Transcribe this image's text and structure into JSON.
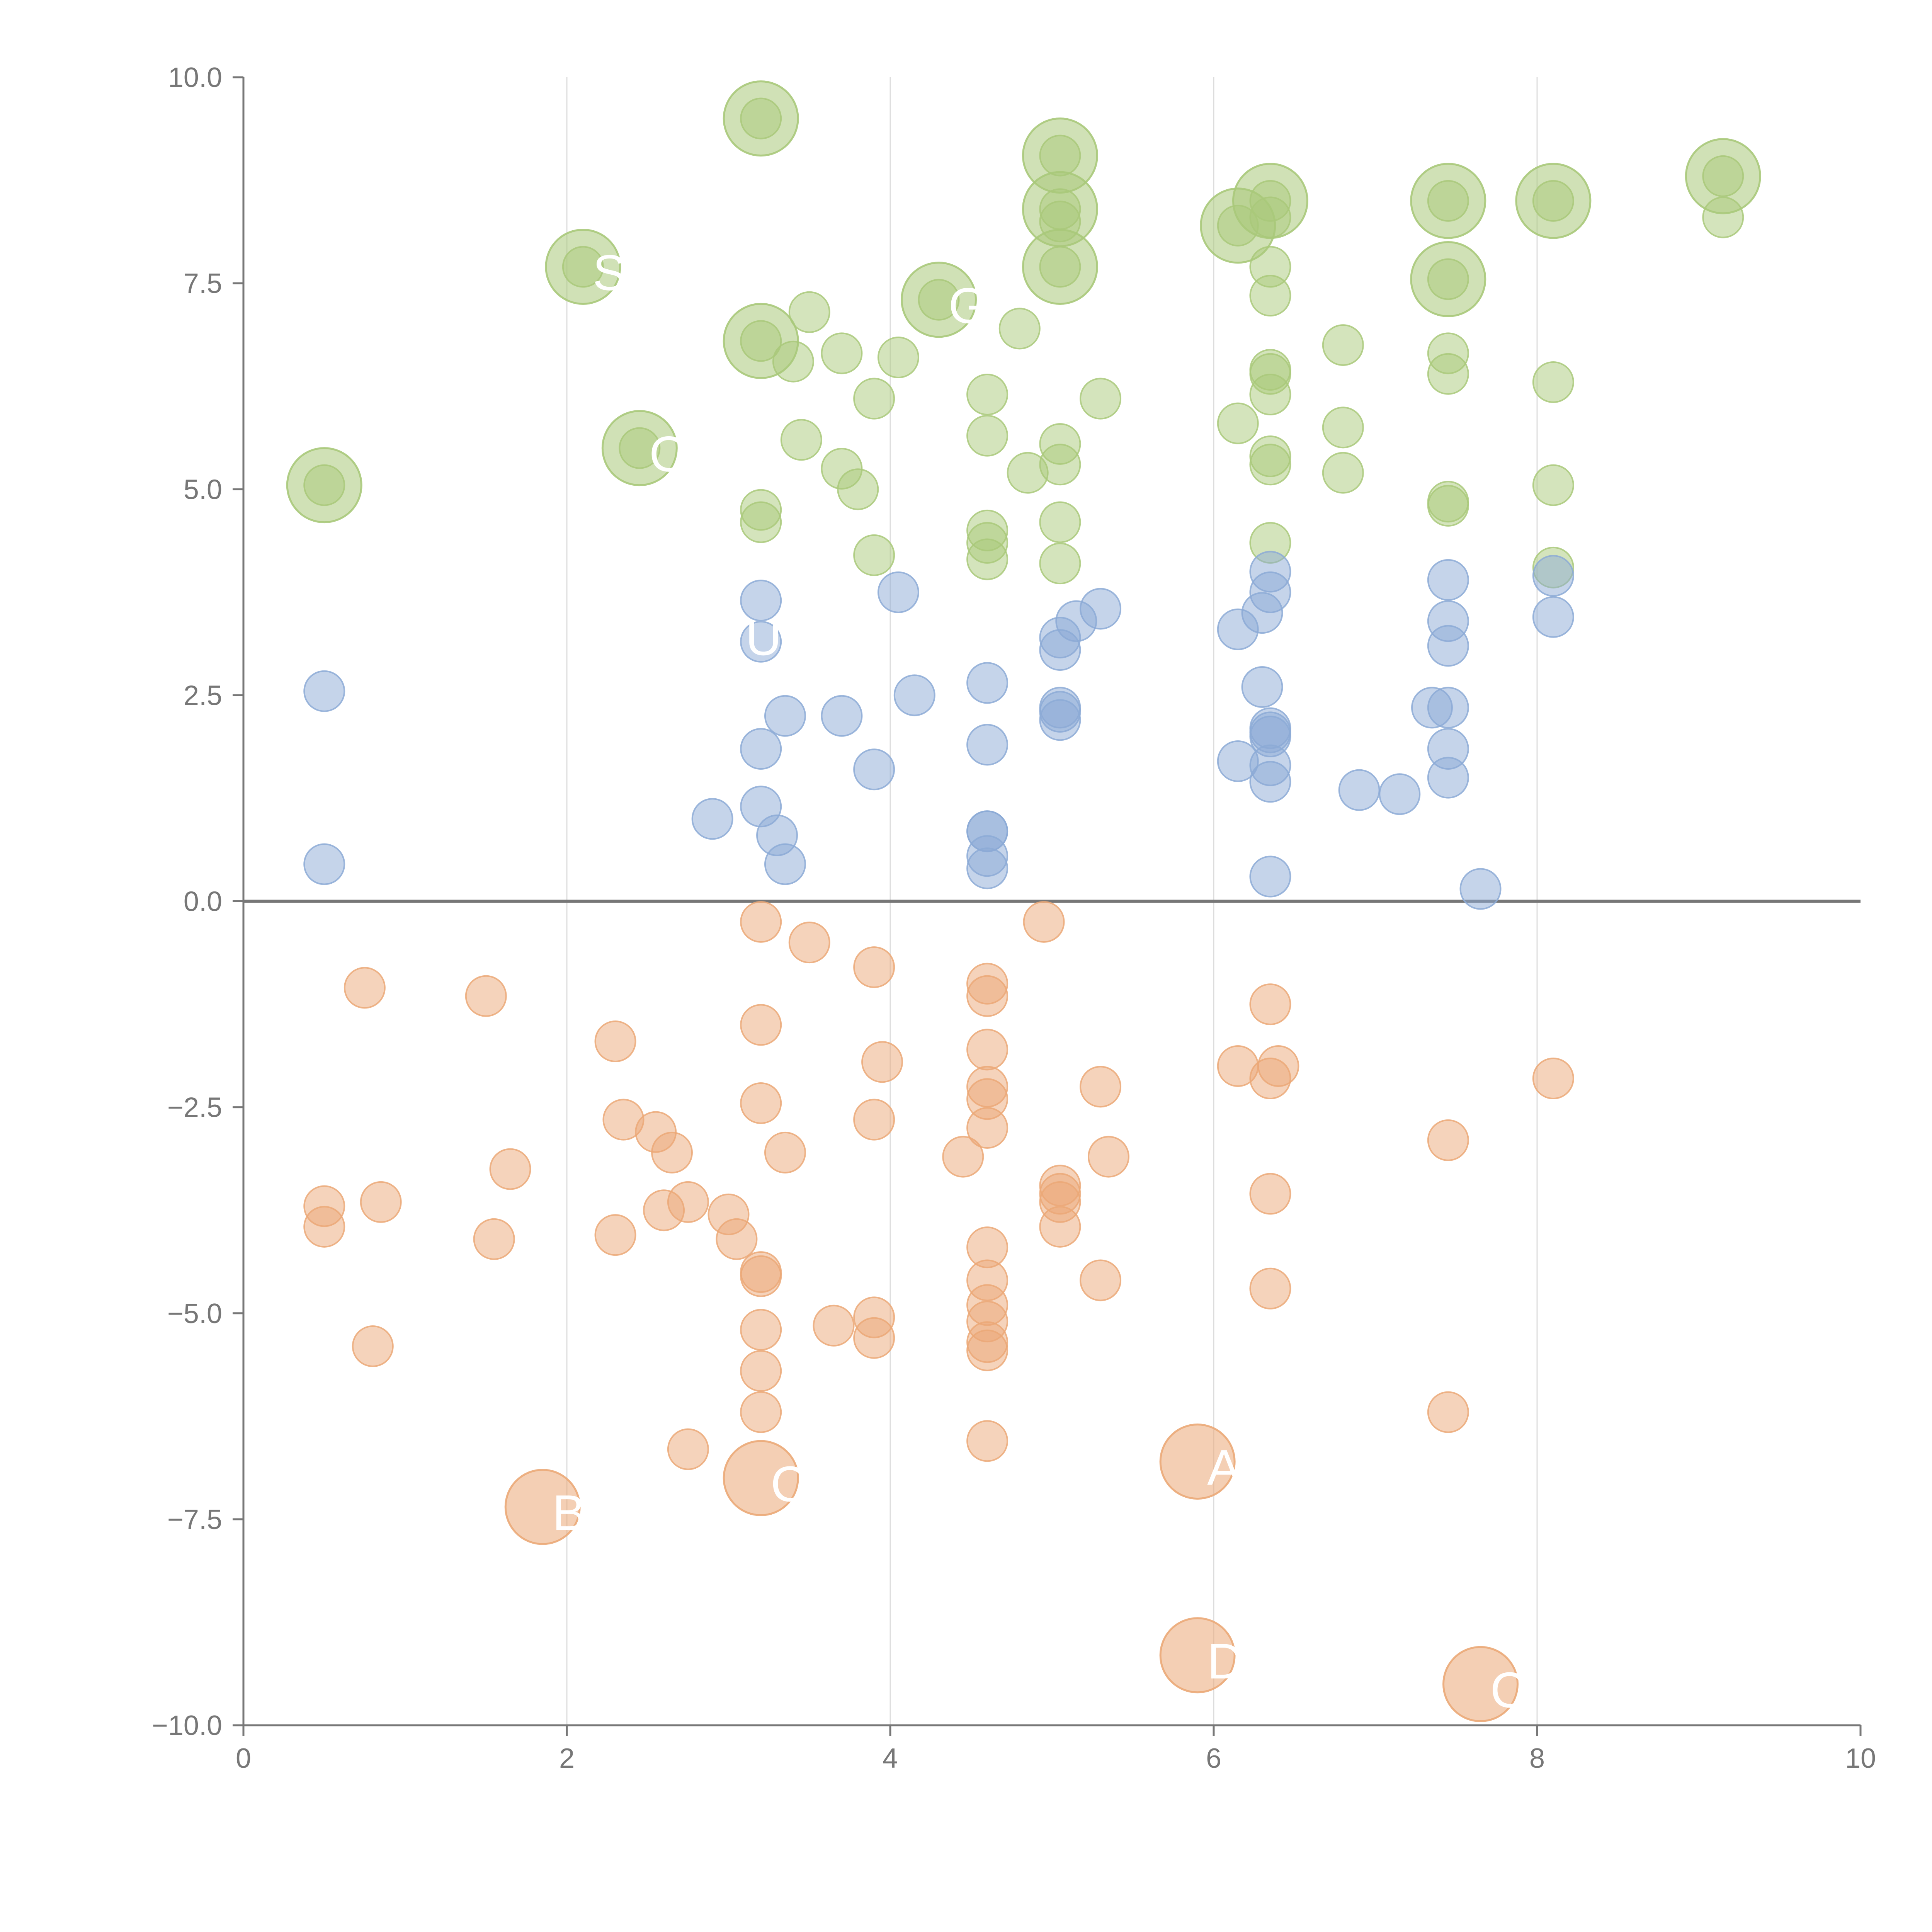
{
  "chart_data": {
    "type": "scatter",
    "title": "",
    "xlabel": "",
    "ylabel": "",
    "xlim": [
      0,
      10
    ],
    "ylim": [
      -10,
      10
    ],
    "x_ticks": [
      0,
      2,
      4,
      6,
      8,
      10
    ],
    "x_tick_labels": [
      "0",
      "2",
      "4",
      "6",
      "8",
      "10"
    ],
    "y_ticks": [
      10,
      7.5,
      5,
      2.5,
      0,
      -2.5,
      -5,
      -7.5,
      -10
    ],
    "y_tick_labels": [
      "10.0",
      "7.5",
      "5.0",
      "2.5",
      "0.0",
      "−2.5",
      "−5.0",
      "−7.5",
      "−10.0"
    ],
    "vertical_gridlines_at": [
      2,
      4,
      6,
      8
    ],
    "zero_line": 0,
    "colors": {
      "upper": "#a9c97a",
      "middle": "#8caad6",
      "lower": "#eba877",
      "axis": "#777777",
      "grid": "#dddddd",
      "zero_line": "#777777",
      "label": "#ffffff"
    },
    "series": [
      {
        "name": "upper",
        "points": [
          [
            3.2,
            9.5
          ],
          [
            5.05,
            9.05
          ],
          [
            6.35,
            8.5
          ],
          [
            7.45,
            8.5
          ],
          [
            8.1,
            8.5
          ],
          [
            9.15,
            8.8
          ],
          [
            5.05,
            8.4
          ],
          [
            6.15,
            8.2
          ],
          [
            5.05,
            7.7
          ],
          [
            7.45,
            7.55
          ],
          [
            3.2,
            6.8
          ],
          [
            4.3,
            7.3
          ],
          [
            2.1,
            7.7
          ],
          [
            2.45,
            5.5
          ],
          [
            0.5,
            5.05
          ],
          [
            9.15,
            8.3
          ],
          [
            6.35,
            8.3
          ],
          [
            5.05,
            8.25
          ],
          [
            6.35,
            7.7
          ],
          [
            6.35,
            7.35
          ],
          [
            3.5,
            7.15
          ],
          [
            4.8,
            6.95
          ],
          [
            6.8,
            6.75
          ],
          [
            3.7,
            6.65
          ],
          [
            4.05,
            6.6
          ],
          [
            3.4,
            6.55
          ],
          [
            7.45,
            6.65
          ],
          [
            6.35,
            6.45
          ],
          [
            6.35,
            6.4
          ],
          [
            7.45,
            6.4
          ],
          [
            8.1,
            6.3
          ],
          [
            4.6,
            6.15
          ],
          [
            6.35,
            6.15
          ],
          [
            5.3,
            6.1
          ],
          [
            3.9,
            6.1
          ],
          [
            6.15,
            5.8
          ],
          [
            6.8,
            5.75
          ],
          [
            4.6,
            5.65
          ],
          [
            3.45,
            5.6
          ],
          [
            5.05,
            5.55
          ],
          [
            6.35,
            5.4
          ],
          [
            5.05,
            5.3
          ],
          [
            6.35,
            5.3
          ],
          [
            3.7,
            5.25
          ],
          [
            4.85,
            5.2
          ],
          [
            6.8,
            5.2
          ],
          [
            3.8,
            5.0
          ],
          [
            8.1,
            5.05
          ],
          [
            7.45,
            4.85
          ],
          [
            7.45,
            4.8
          ],
          [
            3.2,
            4.75
          ],
          [
            3.2,
            4.6
          ],
          [
            5.05,
            4.6
          ],
          [
            4.6,
            4.5
          ],
          [
            4.6,
            4.35
          ],
          [
            6.35,
            4.35
          ],
          [
            3.9,
            4.2
          ],
          [
            4.6,
            4.15
          ],
          [
            5.05,
            4.1
          ],
          [
            8.1,
            4.05
          ]
        ]
      },
      {
        "name": "middle",
        "points": [
          [
            3.2,
            3.65
          ],
          [
            4.05,
            3.75
          ],
          [
            6.35,
            4.0
          ],
          [
            7.45,
            3.9
          ],
          [
            8.1,
            3.95
          ],
          [
            6.35,
            3.75
          ],
          [
            5.3,
            3.55
          ],
          [
            6.3,
            3.5
          ],
          [
            8.1,
            3.45
          ],
          [
            5.15,
            3.4
          ],
          [
            7.45,
            3.4
          ],
          [
            6.15,
            3.3
          ],
          [
            5.05,
            3.2
          ],
          [
            3.2,
            3.15
          ],
          [
            7.45,
            3.1
          ],
          [
            5.05,
            3.05
          ],
          [
            4.6,
            2.65
          ],
          [
            6.3,
            2.6
          ],
          [
            0.5,
            2.55
          ],
          [
            4.15,
            2.5
          ],
          [
            7.35,
            2.35
          ],
          [
            7.45,
            2.35
          ],
          [
            5.05,
            2.35
          ],
          [
            5.05,
            2.3
          ],
          [
            3.35,
            2.25
          ],
          [
            3.7,
            2.25
          ],
          [
            5.05,
            2.2
          ],
          [
            6.35,
            2.1
          ],
          [
            6.35,
            2.05
          ],
          [
            6.35,
            2.0
          ],
          [
            4.6,
            1.9
          ],
          [
            3.2,
            1.85
          ],
          [
            7.45,
            1.85
          ],
          [
            6.15,
            1.7
          ],
          [
            6.35,
            1.65
          ],
          [
            3.9,
            1.6
          ],
          [
            7.45,
            1.5
          ],
          [
            6.35,
            1.45
          ],
          [
            6.9,
            1.35
          ],
          [
            7.15,
            1.3
          ],
          [
            3.2,
            1.15
          ],
          [
            2.9,
            1.0
          ],
          [
            4.6,
            0.85
          ],
          [
            4.6,
            0.85
          ],
          [
            3.3,
            0.8
          ],
          [
            4.6,
            0.55
          ],
          [
            0.5,
            0.45
          ],
          [
            3.35,
            0.45
          ],
          [
            4.6,
            0.4
          ],
          [
            6.35,
            0.3
          ],
          [
            7.65,
            0.15
          ]
        ]
      },
      {
        "name": "lower",
        "points": [
          [
            3.2,
            -0.25
          ],
          [
            4.95,
            -0.25
          ],
          [
            3.5,
            -0.5
          ],
          [
            3.9,
            -0.8
          ],
          [
            0.75,
            -1.05
          ],
          [
            1.5,
            -1.15
          ],
          [
            4.6,
            -1.0
          ],
          [
            4.6,
            -1.15
          ],
          [
            6.35,
            -1.25
          ],
          [
            3.2,
            -1.5
          ],
          [
            2.3,
            -1.7
          ],
          [
            4.6,
            -1.8
          ],
          [
            3.95,
            -1.95
          ],
          [
            6.15,
            -2.0
          ],
          [
            6.4,
            -2.0
          ],
          [
            6.35,
            -2.15
          ],
          [
            8.1,
            -2.15
          ],
          [
            4.6,
            -2.25
          ],
          [
            5.3,
            -2.25
          ],
          [
            4.6,
            -2.4
          ],
          [
            3.2,
            -2.45
          ],
          [
            2.35,
            -2.65
          ],
          [
            3.9,
            -2.65
          ],
          [
            2.55,
            -2.8
          ],
          [
            4.6,
            -2.75
          ],
          [
            7.45,
            -2.9
          ],
          [
            2.65,
            -3.05
          ],
          [
            3.35,
            -3.05
          ],
          [
            4.45,
            -3.1
          ],
          [
            5.35,
            -3.1
          ],
          [
            1.65,
            -3.25
          ],
          [
            5.05,
            -3.45
          ],
          [
            6.35,
            -3.55
          ],
          [
            5.05,
            -3.55
          ],
          [
            0.5,
            -3.7
          ],
          [
            0.85,
            -3.65
          ],
          [
            2.75,
            -3.65
          ],
          [
            5.05,
            -3.65
          ],
          [
            2.6,
            -3.75
          ],
          [
            3.0,
            -3.8
          ],
          [
            0.5,
            -3.95
          ],
          [
            5.05,
            -3.95
          ],
          [
            2.3,
            -4.05
          ],
          [
            1.55,
            -4.1
          ],
          [
            3.05,
            -4.1
          ],
          [
            4.6,
            -4.2
          ],
          [
            3.2,
            -4.5
          ],
          [
            3.2,
            -4.55
          ],
          [
            4.6,
            -4.6
          ],
          [
            5.3,
            -4.6
          ],
          [
            6.35,
            -4.7
          ],
          [
            3.9,
            -5.05
          ],
          [
            4.6,
            -4.9
          ],
          [
            3.65,
            -5.15
          ],
          [
            4.6,
            -5.1
          ],
          [
            3.2,
            -5.2
          ],
          [
            3.9,
            -5.3
          ],
          [
            0.8,
            -5.4
          ],
          [
            4.6,
            -5.35
          ],
          [
            4.6,
            -5.45
          ],
          [
            3.2,
            -5.7
          ],
          [
            3.2,
            -6.2
          ],
          [
            7.45,
            -6.2
          ],
          [
            4.6,
            -6.55
          ],
          [
            2.75,
            -6.65
          ]
        ]
      }
    ],
    "highlighted_points": [
      {
        "series": "upper",
        "x": 3.2,
        "y": 9.5
      },
      {
        "series": "upper",
        "x": 5.05,
        "y": 9.05
      },
      {
        "series": "upper",
        "x": 6.35,
        "y": 8.5
      },
      {
        "series": "upper",
        "x": 7.45,
        "y": 8.5
      },
      {
        "series": "upper",
        "x": 8.1,
        "y": 8.5
      },
      {
        "series": "upper",
        "x": 9.15,
        "y": 8.8
      },
      {
        "series": "upper",
        "x": 5.05,
        "y": 8.4
      },
      {
        "series": "upper",
        "x": 6.15,
        "y": 8.2
      },
      {
        "series": "upper",
        "x": 5.05,
        "y": 7.7
      },
      {
        "series": "upper",
        "x": 7.45,
        "y": 7.55
      },
      {
        "series": "upper",
        "x": 3.2,
        "y": 6.8
      },
      {
        "series": "upper",
        "x": 4.3,
        "y": 7.3,
        "label": "G"
      },
      {
        "series": "upper",
        "x": 2.1,
        "y": 7.7,
        "label": "S"
      },
      {
        "series": "upper",
        "x": 2.45,
        "y": 5.5,
        "label": "O"
      },
      {
        "series": "upper",
        "x": 0.5,
        "y": 5.05
      },
      {
        "series": "lower",
        "x": 1.85,
        "y": -7.35,
        "label": "B"
      },
      {
        "series": "lower",
        "x": 3.2,
        "y": -7.0,
        "label": "C"
      },
      {
        "series": "lower",
        "x": 5.9,
        "y": -6.8,
        "label": "AL"
      },
      {
        "series": "lower",
        "x": 5.9,
        "y": -9.15,
        "label": "D"
      },
      {
        "series": "lower",
        "x": 7.65,
        "y": -9.5,
        "label": "C"
      }
    ],
    "extra_labels": [
      {
        "x": 3.2,
        "y": 3.2,
        "label": "U"
      }
    ]
  }
}
